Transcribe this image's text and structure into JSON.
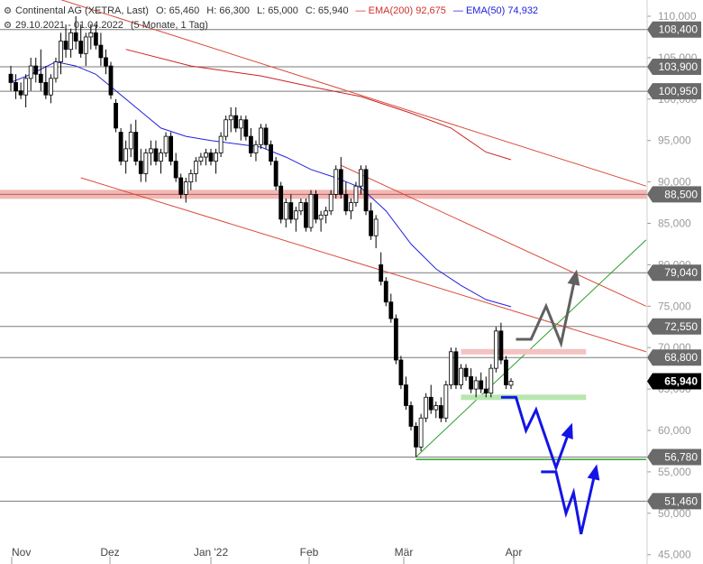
{
  "header": {
    "instrument": "Continental AG (XETRA, Last)",
    "ohlc_open": "O: 65,460",
    "ohlc_high": "H: 66,300",
    "ohlc_low": "L: 65,000",
    "ohlc_close": "C: 65,940",
    "ema200_label": "EMA(200)",
    "ema200_value": "92,675",
    "ema50_label": "EMA(50)",
    "ema50_value": "74,932",
    "date_range": "29.10.2021 - 01.04.2022",
    "period": "(5 Monate, 1 Tag)"
  },
  "colors": {
    "ema200": "#cc2222",
    "ema50": "#2222dd",
    "trendline": "#d94a3a",
    "support_green": "#2e9e2e",
    "resistance_band": "#f2b8b4",
    "target_blue": "#1414e6",
    "target_gray": "#606060",
    "level_label_bg": "#6a6a6a",
    "last_price_bg": "#000000"
  },
  "chart_data": {
    "type": "candlestick",
    "y_axis": {
      "min": 42.5,
      "max": 112,
      "ticks": [
        "110,000",
        "105,000",
        "100,000",
        "95,000",
        "90,000",
        "85,000",
        "80,000",
        "75,000",
        "70,000",
        "65,000",
        "60,000",
        "55,000",
        "50,000",
        "45,000"
      ]
    },
    "x_axis": {
      "labels": [
        "Nov",
        "Dez",
        "Jan '22",
        "Feb",
        "Mär",
        "Apr"
      ]
    },
    "horizontal_levels": [
      {
        "value": 108.4,
        "label": "108,400"
      },
      {
        "value": 103.9,
        "label": "103,900"
      },
      {
        "value": 100.95,
        "label": "100,950"
      },
      {
        "value": 88.5,
        "label": "88,500",
        "band": true
      },
      {
        "value": 79.04,
        "label": "79,040"
      },
      {
        "value": 72.55,
        "label": "72,550"
      },
      {
        "value": 68.8,
        "label": "68,800"
      },
      {
        "value": 56.78,
        "label": "56,780"
      },
      {
        "value": 51.46,
        "label": "51,460"
      }
    ],
    "last_price": {
      "value": 65.94,
      "label": "65,940"
    },
    "candles": [
      [
        0,
        103,
        104,
        101,
        102
      ],
      [
        1,
        102,
        103,
        100,
        101
      ],
      [
        2,
        101,
        102,
        100,
        100.5
      ],
      [
        3,
        100.5,
        103,
        99,
        102.5
      ],
      [
        4,
        102.5,
        105,
        101,
        104
      ],
      [
        5,
        104,
        105,
        102,
        103
      ],
      [
        6,
        103,
        106,
        101,
        102
      ],
      [
        7,
        102,
        104,
        100,
        100.5
      ],
      [
        8,
        100.5,
        103,
        99.5,
        102.5
      ],
      [
        9,
        102.5,
        105,
        102,
        104.5
      ],
      [
        10,
        104.5,
        108,
        103,
        107
      ],
      [
        11,
        107,
        109,
        105,
        106
      ],
      [
        12,
        106,
        108.5,
        105,
        108
      ],
      [
        13,
        108,
        110,
        106,
        107
      ],
      [
        14,
        107,
        109,
        105,
        105.5
      ],
      [
        15,
        105.5,
        108,
        104,
        107.5
      ],
      [
        16,
        107.5,
        109,
        106,
        108
      ],
      [
        17,
        108,
        109,
        106,
        106.5
      ],
      [
        18,
        106.5,
        108,
        104,
        105
      ],
      [
        19,
        105,
        106,
        103,
        104
      ],
      [
        20,
        104,
        104.5,
        100,
        100.5
      ],
      [
        21,
        99.5,
        100,
        96,
        96.5
      ],
      [
        22,
        96,
        96.5,
        92,
        92.5
      ],
      [
        23,
        92.5,
        95,
        91,
        94
      ],
      [
        24,
        94,
        97,
        93,
        96
      ],
      [
        25,
        96,
        97.5,
        92,
        92.5
      ],
      [
        26,
        92.5,
        94,
        90,
        91
      ],
      [
        27,
        91,
        94,
        90,
        93.5
      ],
      [
        28,
        93.5,
        95,
        92,
        94
      ],
      [
        29,
        94,
        95,
        92,
        92.5
      ],
      [
        30,
        92.5,
        94,
        91,
        93.5
      ],
      [
        31,
        93.5,
        96,
        93,
        95.5
      ],
      [
        32,
        95.5,
        96,
        92,
        92.5
      ],
      [
        33,
        92.5,
        93.5,
        90,
        90.5
      ],
      [
        34,
        90.5,
        91,
        88,
        88.5
      ],
      [
        35,
        88.5,
        90.5,
        87.5,
        90
      ],
      [
        36,
        90,
        91.5,
        89,
        91
      ],
      [
        37,
        91,
        93,
        90,
        92.5
      ],
      [
        38,
        92.5,
        93.5,
        92,
        93
      ],
      [
        39,
        93,
        94,
        92,
        93.5
      ],
      [
        40,
        93.5,
        94,
        92,
        92.5
      ],
      [
        41,
        92.5,
        94,
        91,
        93.5
      ],
      [
        42,
        93.5,
        96,
        93,
        95.5
      ],
      [
        43,
        95.5,
        98,
        95,
        97.5
      ],
      [
        44,
        97.5,
        99,
        96,
        98
      ],
      [
        45,
        98,
        99,
        96,
        96.5
      ],
      [
        46,
        96.5,
        98,
        95,
        97.5
      ],
      [
        47,
        97.5,
        98,
        95,
        95.5
      ],
      [
        48,
        95.5,
        96.5,
        93,
        93.5
      ],
      [
        49,
        93.5,
        95,
        92.5,
        94.5
      ],
      [
        50,
        94.5,
        97,
        94,
        96.5
      ],
      [
        51,
        96.5,
        97,
        94,
        94.5
      ],
      [
        52,
        94.5,
        95,
        92,
        92.5
      ],
      [
        53,
        92.5,
        93,
        89,
        89.5
      ],
      [
        54,
        89.5,
        90,
        85,
        85.5
      ],
      [
        55,
        85.5,
        88,
        84.5,
        87.5
      ],
      [
        56,
        87.5,
        88.5,
        85,
        85.5
      ],
      [
        57,
        85.5,
        87,
        84,
        86.5
      ],
      [
        58,
        86.5,
        88,
        86,
        87.5
      ],
      [
        59,
        87.5,
        88,
        84,
        84.5
      ],
      [
        60,
        84.5,
        89,
        84,
        88.5
      ],
      [
        61,
        88.5,
        89,
        85,
        85.5
      ],
      [
        62,
        85.5,
        86.5,
        84,
        86
      ],
      [
        63,
        86,
        87,
        85,
        86.5
      ],
      [
        64,
        86.5,
        89,
        86,
        88.5
      ],
      [
        65,
        88.5,
        92,
        88,
        91.5
      ],
      [
        66,
        91.5,
        93,
        88,
        88.5
      ],
      [
        67,
        88.5,
        90,
        86,
        86.5
      ],
      [
        68,
        86.5,
        88,
        85.5,
        87.5
      ],
      [
        69,
        87.5,
        90,
        87,
        89.5
      ],
      [
        70,
        89.5,
        92,
        88.5,
        91.5
      ],
      [
        71,
        91.5,
        92,
        86,
        86.5
      ],
      [
        72,
        86.5,
        87.5,
        83,
        83.5
      ],
      [
        73,
        83.5,
        86,
        82,
        85.5
      ],
      [
        74,
        80,
        81.5,
        77.5,
        78
      ],
      [
        75,
        78,
        78.5,
        75,
        75.5
      ],
      [
        76,
        75.5,
        76.5,
        73,
        73.5
      ],
      [
        77,
        73.5,
        74,
        68,
        68.5
      ],
      [
        78,
        68.5,
        69,
        65,
        65.5
      ],
      [
        79,
        65.5,
        66.5,
        62.5,
        63
      ],
      [
        80,
        63,
        63.5,
        60,
        60.5
      ],
      [
        81,
        60.5,
        61,
        56.8,
        58
      ],
      [
        82,
        58,
        62,
        57.5,
        61.5
      ],
      [
        83,
        61.5,
        64.5,
        61,
        64
      ],
      [
        84,
        64,
        65.5,
        62,
        62.5
      ],
      [
        85,
        62.5,
        63.5,
        61.5,
        63
      ],
      [
        86,
        63,
        64,
        61,
        61.5
      ],
      [
        87,
        61.5,
        66,
        61,
        65.5
      ],
      [
        88,
        65.5,
        70,
        65,
        69.5
      ],
      [
        89,
        69.5,
        70,
        65,
        65.5
      ],
      [
        90,
        65.5,
        68,
        65,
        67.5
      ],
      [
        91,
        67.5,
        68,
        66,
        66.5
      ],
      [
        92,
        66.5,
        67.5,
        64.5,
        65
      ],
      [
        93,
        65,
        66.5,
        64,
        66
      ],
      [
        94,
        66,
        67,
        64.5,
        65
      ],
      [
        95,
        65,
        66.5,
        64,
        64.5
      ],
      [
        96,
        64.5,
        68,
        64,
        67.5
      ],
      [
        97,
        67.5,
        72.5,
        67,
        72
      ],
      [
        98,
        72,
        73,
        68,
        68.5
      ],
      [
        99,
        68.5,
        69,
        65,
        65.5
      ],
      [
        100,
        65.46,
        66.3,
        65,
        65.94
      ]
    ],
    "ema200": [
      [
        23,
        106
      ],
      [
        36,
        104
      ],
      [
        50,
        102.8
      ],
      [
        60,
        101.5
      ],
      [
        70,
        100.3
      ],
      [
        80,
        98.3
      ],
      [
        88,
        96.5
      ],
      [
        95,
        93.6
      ],
      [
        100,
        92.675
      ]
    ],
    "ema50": [
      [
        0,
        102
      ],
      [
        4,
        103
      ],
      [
        9,
        104.5
      ],
      [
        13,
        104
      ],
      [
        17,
        103
      ],
      [
        20,
        101.5
      ],
      [
        25,
        99
      ],
      [
        30,
        96.5
      ],
      [
        35,
        95.5
      ],
      [
        40,
        95
      ],
      [
        45,
        94.6
      ],
      [
        50,
        94.2
      ],
      [
        55,
        93
      ],
      [
        60,
        91.5
      ],
      [
        65,
        90.5
      ],
      [
        70,
        89.3
      ],
      [
        75,
        86.5
      ],
      [
        80,
        82.5
      ],
      [
        85,
        79.5
      ],
      [
        90,
        77.5
      ],
      [
        95,
        75.8
      ],
      [
        100,
        74.932
      ]
    ],
    "trendlines": [
      {
        "from": [
          10,
          112
        ],
        "to": [
          127,
          89.5
        ]
      },
      {
        "from": [
          66,
          92
        ],
        "to": [
          127,
          75
        ]
      },
      {
        "from": [
          14,
          90.5
        ],
        "to": [
          127,
          69.5
        ]
      },
      {
        "from": [
          81,
          56.8
        ],
        "to": [
          127,
          83
        ]
      }
    ],
    "support_segments": [
      {
        "from": [
          81,
          56.5
        ],
        "to": [
          127,
          56.5
        ]
      },
      {
        "from": [
          90,
          64
        ],
        "to": [
          115,
          64
        ]
      }
    ],
    "resistance_zone": {
      "from": [
        90,
        69.5
      ],
      "to": [
        115,
        69.5
      ]
    },
    "scenario_gray": [
      [
        101,
        71
      ],
      [
        104,
        71
      ],
      [
        107,
        75
      ],
      [
        110,
        70.5
      ],
      [
        113,
        79
      ]
    ],
    "scenario_blue_1": [
      [
        98,
        64
      ],
      [
        101,
        64
      ],
      [
        103,
        60
      ],
      [
        105,
        62.5
      ],
      [
        109,
        55.5
      ],
      [
        112,
        60.5
      ]
    ],
    "scenario_blue_2": [
      [
        106,
        55
      ],
      [
        109,
        55
      ],
      [
        111,
        50
      ],
      [
        112.5,
        52.5
      ],
      [
        114,
        47.5
      ],
      [
        117,
        55.5
      ]
    ]
  }
}
